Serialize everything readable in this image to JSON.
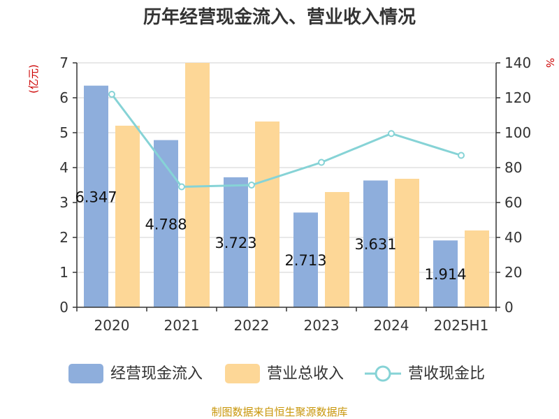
{
  "chart_data": {
    "type": "bar",
    "title": "历年经营现金流入、营业收入情况",
    "left_unit": "(亿元)",
    "right_unit": "%",
    "categories": [
      "2020",
      "2021",
      "2022",
      "2023",
      "2024",
      "2025H1"
    ],
    "ylim_left": [
      0,
      7
    ],
    "yticks_left": [
      "0",
      "1",
      "2",
      "3",
      "4",
      "5",
      "6",
      "7"
    ],
    "ylim_right": [
      0,
      140
    ],
    "yticks_right": [
      "0",
      "20",
      "40",
      "60",
      "80",
      "100",
      "120",
      "140"
    ],
    "series": [
      {
        "name": "经营现金流入",
        "kind": "bar",
        "axis": "left",
        "color": "#8eaedc",
        "values": [
          6.347,
          4.788,
          3.723,
          2.713,
          3.631,
          1.914
        ],
        "labels": [
          "6.347",
          "4.788",
          "3.723",
          "2.713",
          "3.631",
          "1.914"
        ]
      },
      {
        "name": "营业总收入",
        "kind": "bar",
        "axis": "left",
        "color": "#fdd797",
        "values": [
          5.2,
          7.0,
          5.32,
          3.3,
          3.68,
          2.2
        ]
      },
      {
        "name": "营收现金比",
        "kind": "line",
        "axis": "right",
        "color": "#86d3d6",
        "values": [
          122,
          69,
          70,
          83,
          99.5,
          87
        ]
      }
    ],
    "grid": true,
    "legend_position": "bottom"
  },
  "source_text": "制图数据来自恒生聚源数据库"
}
